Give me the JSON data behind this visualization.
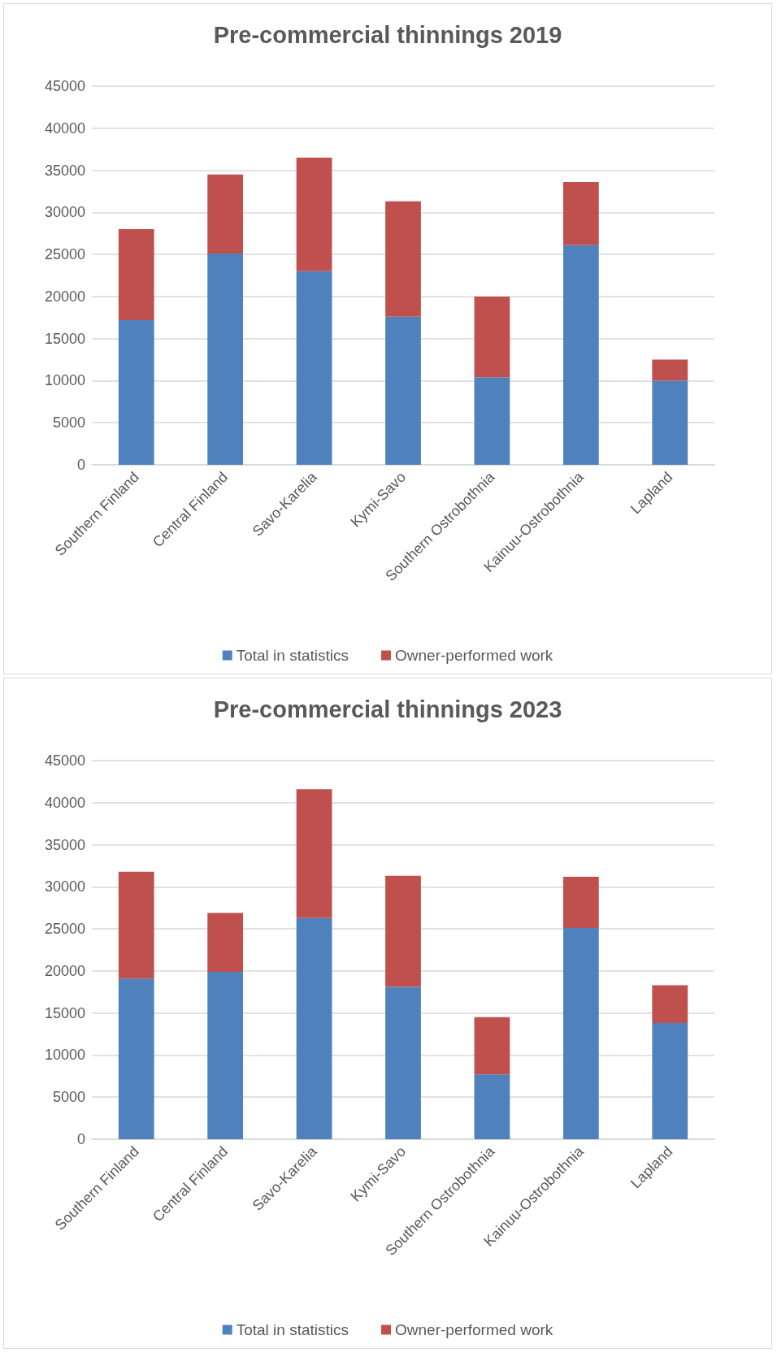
{
  "chart_data": [
    {
      "type": "bar",
      "title": "Pre-commercial thinnings 2019",
      "categories": [
        "Southern Finland",
        "Central Finland",
        "Savo-Karelia",
        "Kymi-Savo",
        "Southern Ostrobothnia",
        "Kainuu-Ostrobothnia",
        "Lapland"
      ],
      "stacked": true,
      "series": [
        {
          "name": "Total in statistics",
          "color": "#4f81bd",
          "values": [
            17200,
            25100,
            23000,
            17600,
            10400,
            26100,
            10000
          ]
        },
        {
          "name": "Owner-performed work",
          "color": "#c0504d",
          "values": [
            10800,
            9400,
            13500,
            13700,
            9600,
            7500,
            2500
          ]
        }
      ],
      "ylim": [
        0,
        45000
      ],
      "yticks": [
        0,
        5000,
        10000,
        15000,
        20000,
        25000,
        30000,
        35000,
        40000,
        45000
      ],
      "grid": "y",
      "legend": "bottom"
    },
    {
      "type": "bar",
      "title": "Pre-commercial thinnings 2023",
      "categories": [
        "Southern Finland",
        "Central Finland",
        "Savo-Karelia",
        "Kymi-Savo",
        "Southern Ostrobothnia",
        "Kainuu-Ostrobothnia",
        "Lapland"
      ],
      "stacked": true,
      "series": [
        {
          "name": "Total in statistics",
          "color": "#4f81bd",
          "values": [
            19100,
            19900,
            26300,
            18100,
            7700,
            25100,
            13800
          ]
        },
        {
          "name": "Owner-performed work",
          "color": "#c0504d",
          "values": [
            12700,
            7000,
            15300,
            13200,
            6800,
            6100,
            4500
          ]
        }
      ],
      "ylim": [
        0,
        45000
      ],
      "yticks": [
        0,
        5000,
        10000,
        15000,
        20000,
        25000,
        30000,
        35000,
        40000,
        45000
      ],
      "grid": "y",
      "legend": "bottom"
    }
  ]
}
